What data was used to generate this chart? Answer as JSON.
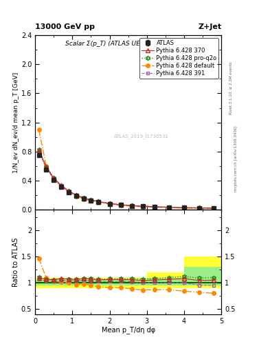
{
  "title_top": "13000 GeV pp",
  "title_right": "Z+Jet",
  "plot_title": "Scalar Σ(p_T) (ATLAS UE in Z production)",
  "watermark": "ATLAS_2019_I1736531",
  "rivet_label": "Rivet 3.1.10, ≥ 2.2M events",
  "arxiv_label": "[arXiv:1306.3436]",
  "mcplots_label": "mcplots.cern.ch",
  "xlabel": "Mean p_T/dη dφ",
  "ylabel_main": "1/N_ev dN_ev/d mean p_T [GeV]",
  "ylabel_ratio": "Ratio to ATLAS",
  "xlim": [
    0,
    5
  ],
  "ylim_main": [
    0,
    2.4
  ],
  "ylim_ratio": [
    0.4,
    2.4
  ],
  "x_atlas": [
    0.1,
    0.3,
    0.5,
    0.7,
    0.9,
    1.1,
    1.3,
    1.5,
    1.7,
    2.0,
    2.3,
    2.6,
    2.9,
    3.2,
    3.6,
    4.0,
    4.4,
    4.8
  ],
  "y_atlas": [
    0.75,
    0.55,
    0.41,
    0.31,
    0.24,
    0.19,
    0.15,
    0.125,
    0.105,
    0.08,
    0.063,
    0.052,
    0.044,
    0.038,
    0.03,
    0.025,
    0.022,
    0.02
  ],
  "yerr_atlas": [
    0.02,
    0.015,
    0.01,
    0.008,
    0.006,
    0.005,
    0.004,
    0.003,
    0.003,
    0.002,
    0.002,
    0.0015,
    0.001,
    0.001,
    0.001,
    0.001,
    0.001,
    0.001
  ],
  "x_py370": [
    0.1,
    0.3,
    0.5,
    0.7,
    0.9,
    1.1,
    1.3,
    1.5,
    1.7,
    2.0,
    2.3,
    2.6,
    2.9,
    3.2,
    3.6,
    4.0,
    4.4,
    4.8
  ],
  "y_py370": [
    0.82,
    0.585,
    0.435,
    0.335,
    0.257,
    0.202,
    0.162,
    0.134,
    0.111,
    0.085,
    0.067,
    0.055,
    0.046,
    0.04,
    0.032,
    0.027,
    0.023,
    0.021
  ],
  "x_py391": [
    0.1,
    0.3,
    0.5,
    0.7,
    0.9,
    1.1,
    1.3,
    1.5,
    1.7,
    2.0,
    2.3,
    2.6,
    2.9,
    3.2,
    3.6,
    4.0,
    4.4,
    4.8
  ],
  "y_py391": [
    0.8,
    0.57,
    0.42,
    0.325,
    0.25,
    0.196,
    0.157,
    0.13,
    0.108,
    0.082,
    0.065,
    0.053,
    0.044,
    0.038,
    0.03,
    0.025,
    0.021,
    0.019
  ],
  "x_pydef": [
    0.1,
    0.3,
    0.5,
    0.7,
    0.9,
    1.1,
    1.3,
    1.5,
    1.7,
    2.0,
    2.3,
    2.6,
    2.9,
    3.2,
    3.6,
    4.0,
    4.4,
    4.8
  ],
  "y_pydef": [
    1.1,
    0.6,
    0.42,
    0.315,
    0.24,
    0.184,
    0.147,
    0.119,
    0.097,
    0.073,
    0.057,
    0.046,
    0.038,
    0.033,
    0.026,
    0.021,
    0.018,
    0.016
  ],
  "x_pyproq2o": [
    0.1,
    0.3,
    0.5,
    0.7,
    0.9,
    1.1,
    1.3,
    1.5,
    1.7,
    2.0,
    2.3,
    2.6,
    2.9,
    3.2,
    3.6,
    4.0,
    4.4,
    4.8
  ],
  "y_pyproq2o": [
    0.83,
    0.59,
    0.435,
    0.333,
    0.257,
    0.202,
    0.162,
    0.135,
    0.112,
    0.086,
    0.068,
    0.056,
    0.047,
    0.041,
    0.033,
    0.028,
    0.024,
    0.022
  ],
  "color_atlas": "#222222",
  "color_py370": "#cc2222",
  "color_py391": "#996699",
  "color_pydef": "#ff8800",
  "color_pyproq2o": "#228822",
  "band_x_edges": [
    0.0,
    0.5,
    1.0,
    1.5,
    2.0,
    2.5,
    3.0,
    3.5,
    4.0,
    5.1
  ],
  "band_green_lo": [
    0.95,
    0.95,
    0.95,
    0.95,
    0.95,
    0.95,
    0.95,
    0.95,
    0.95,
    0.95
  ],
  "band_green_hi": [
    1.05,
    1.05,
    1.05,
    1.05,
    1.05,
    1.05,
    1.1,
    1.1,
    1.3,
    1.3
  ],
  "band_yellow_lo": [
    0.9,
    0.9,
    0.9,
    0.9,
    0.9,
    0.9,
    0.9,
    0.9,
    0.9,
    0.9
  ],
  "band_yellow_hi": [
    1.1,
    1.1,
    1.1,
    1.1,
    1.1,
    1.1,
    1.2,
    1.2,
    1.5,
    1.5
  ]
}
